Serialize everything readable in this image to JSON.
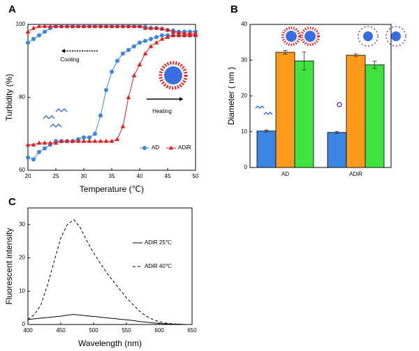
{
  "chart_data": [
    {
      "type": "line",
      "label": "A",
      "x_label": "Temperature (℃)",
      "y_label": "Turbidity (%)",
      "x": [
        20,
        21,
        22,
        23,
        24,
        25,
        26,
        27,
        28,
        29,
        30,
        31,
        32,
        33,
        34,
        35,
        36,
        37,
        38,
        39,
        40,
        41,
        42,
        43,
        44,
        45,
        46,
        47,
        48,
        49,
        50
      ],
      "xlim": [
        20,
        50
      ],
      "xticks": [
        20,
        25,
        30,
        35,
        40,
        45,
        50
      ],
      "ylim": [
        60,
        100
      ],
      "yticks": [
        60,
        80,
        100
      ],
      "legend": "lower right",
      "series": [
        {
          "name": "AD",
          "color": "#3a86e0",
          "marker": "circle",
          "values": [
            63.5,
            63,
            65,
            66,
            67,
            68,
            68,
            68,
            68,
            68.5,
            69,
            69,
            70,
            75,
            82,
            87,
            90,
            92,
            93,
            94,
            95,
            95.5,
            96,
            96.5,
            97,
            97,
            97,
            97,
            97,
            97,
            97
          ],
          "values_cooling": [
            95,
            96,
            97,
            98,
            99,
            99.5,
            99.5,
            99.5,
            99.5,
            99.5,
            99.5,
            99.5,
            99.5,
            99.5,
            99.5,
            99.5,
            99.5,
            99.5,
            99.5,
            99.5,
            99.5,
            99.3,
            99,
            99,
            98.8,
            98.5,
            98.3,
            98,
            98,
            98,
            98
          ]
        },
        {
          "name": "ADiR",
          "color": "#e02020",
          "marker": "triangle",
          "values": [
            67,
            67,
            67.5,
            67.5,
            67.5,
            67.5,
            68,
            68,
            68,
            68,
            68,
            68,
            68,
            68,
            68,
            68,
            68.5,
            72,
            80,
            86,
            89,
            92,
            94,
            95,
            96,
            96.5,
            97,
            97,
            97,
            97,
            97
          ],
          "values_cooling": [
            98,
            99,
            99.5,
            99.5,
            99.5,
            99.5,
            99.5,
            99.5,
            99.5,
            99.5,
            99.5,
            99.5,
            99.5,
            99.5,
            99.5,
            99.5,
            99.5,
            99.5,
            99.5,
            99.5,
            99.5,
            99,
            99,
            99,
            98.8,
            98.5,
            98,
            97.8,
            97.5,
            97.5,
            97.5
          ]
        }
      ],
      "annotations": [
        "Cooling",
        "Heating"
      ]
    },
    {
      "type": "bar",
      "label": "B",
      "y_label": "Diameter ( nm )",
      "categories": [
        "AD",
        "ADiR"
      ],
      "ylim": [
        0,
        40
      ],
      "yticks": [
        0,
        10,
        20,
        30,
        40
      ],
      "series": [
        {
          "color": "#3a86e0",
          "values": [
            10.2,
            9.8
          ],
          "errors": [
            0.3,
            0.3
          ]
        },
        {
          "color": "#ff9a1a",
          "values": [
            32.2,
            31.4
          ],
          "errors": [
            0.5,
            0.4
          ]
        },
        {
          "color": "#3fe33f",
          "values": [
            29.8,
            28.7
          ],
          "errors": [
            2.5,
            1.0
          ]
        }
      ]
    },
    {
      "type": "line",
      "label": "C",
      "x_label": "Wavelength (nm)",
      "y_label": "Fluorescent intensity",
      "x": [
        400,
        410,
        420,
        430,
        440,
        450,
        460,
        470,
        480,
        490,
        500,
        510,
        520,
        530,
        540,
        550,
        560,
        570,
        580,
        590,
        600,
        610,
        620,
        630,
        640,
        650
      ],
      "xlim": [
        400,
        650
      ],
      "xticks": [
        400,
        450,
        500,
        550,
        600,
        650
      ],
      "ylim": [
        0,
        35
      ],
      "yticks": [
        0,
        10,
        20,
        30
      ],
      "legend": "upper right",
      "series": [
        {
          "name": "ADiR 25℃",
          "color": "#000000",
          "dash": "none",
          "values": [
            1.5,
            1.7,
            1.9,
            2.1,
            2.3,
            2.5,
            2.8,
            3,
            2.8,
            2.6,
            2.4,
            2.2,
            2,
            1.8,
            1.6,
            1.4,
            1.2,
            0.9,
            0.7,
            0.5,
            0.3,
            0.2,
            0.1,
            0.1,
            0,
            0
          ]
        },
        {
          "name": "ADiR 40℃",
          "color": "#000000",
          "dash": "4 3",
          "values": [
            1.5,
            3,
            6,
            12,
            19,
            26,
            30,
            31.5,
            29,
            25,
            21.5,
            18.5,
            15.5,
            13,
            10.5,
            8,
            6,
            4,
            2.5,
            1.5,
            0.8,
            0.4,
            0.2,
            0.1,
            0,
            0
          ]
        }
      ]
    }
  ]
}
